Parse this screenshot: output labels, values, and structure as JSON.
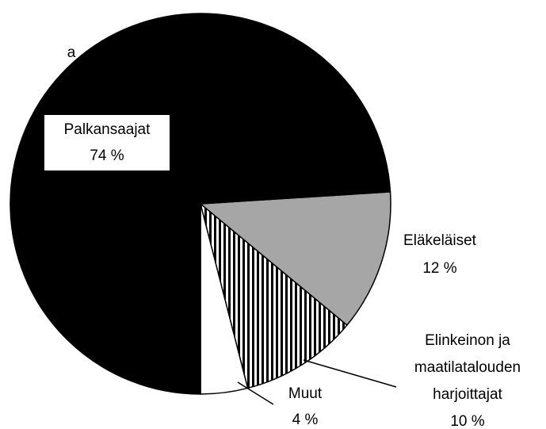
{
  "chart_data": {
    "type": "pie",
    "annotation": "a",
    "categories": [
      "Muut",
      "Elinkeinon ja\nmaatilatalouden\nharjoittajat",
      "Eläkeläiset",
      "Palkansaajat"
    ],
    "values": [
      4,
      10,
      12,
      74
    ],
    "value_labels": [
      "4 %",
      "10 %",
      "12 %",
      "74 %"
    ],
    "colors": [
      "#ffffff",
      "#ffffff",
      "#a6a6a6",
      "#000000"
    ],
    "hatched": [
      false,
      true,
      false,
      false
    ]
  }
}
